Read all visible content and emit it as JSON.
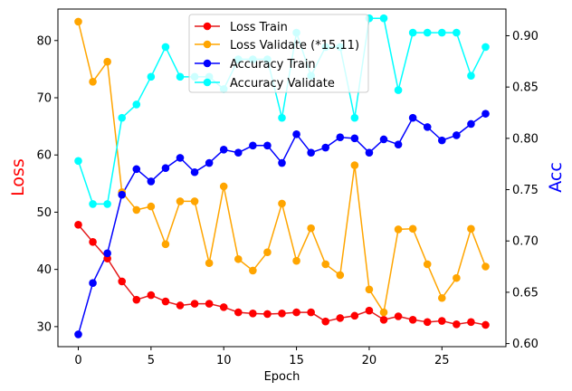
{
  "chart_data": {
    "type": "line",
    "title": "",
    "xlabel": "Epoch",
    "ylabel_left": "Loss",
    "ylabel_right": "Acc",
    "xlim": [
      -1.4,
      29.4
    ],
    "ylim_left": [
      26.5,
      85.5
    ],
    "ylim_right": [
      0.597,
      0.926
    ],
    "x_ticks": [
      0,
      5,
      10,
      15,
      20,
      25
    ],
    "y_ticks_left": [
      30,
      40,
      50,
      60,
      70,
      80
    ],
    "y_ticks_right": [
      "0.60",
      "0.65",
      "0.70",
      "0.75",
      "0.80",
      "0.85",
      "0.90"
    ],
    "grid": false,
    "legend_position": "top-center",
    "series": [
      {
        "name": "Loss Train",
        "axis": "left",
        "color": "#e41a1c",
        "marker_color": "#ff0000",
        "x": [
          0,
          1,
          2,
          3,
          4,
          5,
          6,
          7,
          8,
          9,
          10,
          11,
          12,
          13,
          14,
          15,
          16,
          17,
          18,
          19,
          20,
          21,
          22,
          23,
          24,
          25,
          26,
          27,
          28
        ],
        "values": [
          47.8,
          44.8,
          41.9,
          37.9,
          34.7,
          35.5,
          34.4,
          33.7,
          34.0,
          34.0,
          33.4,
          32.5,
          32.3,
          32.2,
          32.3,
          32.5,
          32.5,
          30.9,
          31.5,
          31.9,
          32.8,
          31.2,
          31.8,
          31.2,
          30.8,
          31.0,
          30.4,
          30.8,
          30.3
        ]
      },
      {
        "name": "Loss Validate (*15.11)",
        "axis": "left",
        "color": "#ffa500",
        "marker_color": "#ffa500",
        "x": [
          0,
          1,
          2,
          3,
          4,
          5,
          6,
          7,
          8,
          9,
          10,
          11,
          12,
          13,
          14,
          15,
          16,
          17,
          18,
          19,
          20,
          21,
          22,
          23,
          24,
          25,
          26,
          27,
          28
        ],
        "values": [
          83.3,
          72.8,
          76.3,
          53.5,
          50.4,
          51.0,
          44.4,
          51.9,
          51.9,
          41.1,
          54.5,
          41.8,
          39.8,
          43.0,
          51.5,
          41.5,
          47.2,
          40.9,
          39.0,
          58.2,
          36.5,
          32.5,
          47.0,
          47.1,
          40.9,
          35.0,
          38.5,
          47.1,
          40.5
        ]
      },
      {
        "name": "Accuracy Train",
        "axis": "right",
        "color": "#0000ff",
        "marker_color": "#0000ff",
        "x": [
          0,
          1,
          2,
          3,
          4,
          5,
          6,
          7,
          8,
          9,
          10,
          11,
          12,
          13,
          14,
          15,
          16,
          17,
          18,
          19,
          20,
          21,
          22,
          23,
          24,
          25,
          26,
          27,
          28
        ],
        "values": [
          0.609,
          0.659,
          0.688,
          0.745,
          0.77,
          0.758,
          0.771,
          0.781,
          0.767,
          0.776,
          0.789,
          0.786,
          0.793,
          0.793,
          0.776,
          0.804,
          0.786,
          0.791,
          0.801,
          0.8,
          0.786,
          0.799,
          0.794,
          0.82,
          0.811,
          0.798,
          0.803,
          0.814,
          0.824
        ]
      },
      {
        "name": "Accuracy Validate",
        "axis": "right",
        "color": "#00ffff",
        "marker_color": "#00ffff",
        "x": [
          0,
          1,
          2,
          3,
          4,
          5,
          6,
          7,
          8,
          9,
          10,
          11,
          12,
          13,
          14,
          15,
          16,
          17,
          18,
          19,
          20,
          21,
          22,
          23,
          24,
          25,
          26,
          27,
          28
        ],
        "values": [
          0.778,
          0.736,
          0.736,
          0.82,
          0.833,
          0.86,
          0.889,
          0.86,
          0.86,
          0.86,
          0.848,
          0.877,
          0.877,
          0.877,
          0.82,
          0.903,
          0.861,
          0.889,
          0.889,
          0.82,
          0.917,
          0.917,
          0.847,
          0.903,
          0.903,
          0.903,
          0.903,
          0.861,
          0.889
        ]
      }
    ]
  }
}
